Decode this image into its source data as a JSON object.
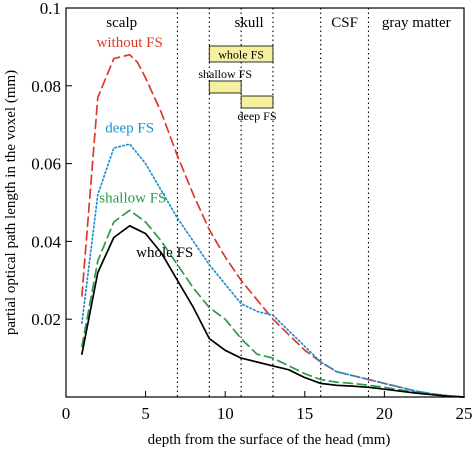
{
  "chart_data": {
    "type": "line",
    "title": "",
    "xlabel": "depth from the surface of the head  (mm)",
    "ylabel": "partial optical path length in the voxel  (mm)",
    "xlim": [
      0,
      25
    ],
    "ylim": [
      0,
      0.1
    ],
    "x_ticks": [
      "0",
      "5",
      "10",
      "15",
      "20",
      "25"
    ],
    "y_ticks": [
      "0.02",
      "0.04",
      "0.06",
      "0.08",
      "0.1"
    ],
    "grid": false,
    "regions": [
      {
        "label": "scalp",
        "from": 0,
        "to": 7
      },
      {
        "label": "skull",
        "from": 7,
        "to": 16
      },
      {
        "label": "CSF",
        "from": 16,
        "to": 19
      },
      {
        "label": "gray matter",
        "from": 19,
        "to": 25
      }
    ],
    "boundaries": [
      7,
      9,
      11,
      13,
      16,
      19
    ],
    "fs_layers": [
      {
        "label": "whole FS",
        "from": 9,
        "to": 13
      },
      {
        "label": "shallow FS",
        "from": 9,
        "to": 11
      },
      {
        "label": "deep FS",
        "from": 11,
        "to": 13
      }
    ],
    "fs_box_color": "#f5f0a0",
    "series": [
      {
        "name": "without FS",
        "color": "#d93a2b",
        "style": "dashed",
        "x": [
          1,
          2,
          3,
          4,
          4.5,
          5,
          6,
          7,
          8,
          9,
          10,
          11,
          12,
          13,
          14,
          15,
          16,
          17,
          18,
          19,
          20,
          21,
          22,
          23,
          24,
          25
        ],
        "y": [
          0.026,
          0.077,
          0.087,
          0.088,
          0.086,
          0.082,
          0.073,
          0.062,
          0.052,
          0.043,
          0.036,
          0.03,
          0.025,
          0.02,
          0.016,
          0.012,
          0.009,
          0.0065,
          0.0055,
          0.0045,
          0.0035,
          0.0025,
          0.0015,
          0.0008,
          0.0003,
          0.0
        ]
      },
      {
        "name": "deep FS",
        "color": "#1f8fd0",
        "style": "dotted",
        "x": [
          1,
          2,
          3,
          4,
          5,
          6,
          7,
          8,
          9,
          10,
          11,
          12,
          13,
          14,
          15,
          16,
          17,
          18,
          19,
          20,
          21,
          22,
          23,
          24,
          25
        ],
        "y": [
          0.019,
          0.052,
          0.064,
          0.065,
          0.06,
          0.053,
          0.046,
          0.04,
          0.034,
          0.029,
          0.024,
          0.022,
          0.021,
          0.017,
          0.013,
          0.009,
          0.0065,
          0.0055,
          0.0045,
          0.0035,
          0.0025,
          0.0015,
          0.0008,
          0.0003,
          0.0
        ]
      },
      {
        "name": "shallow FS",
        "color": "#2e9a4a",
        "style": "dashed",
        "x": [
          1,
          2,
          3,
          4,
          5,
          6,
          7,
          8,
          9,
          10,
          11,
          12,
          13,
          14,
          15,
          16,
          17,
          18,
          19,
          20,
          21,
          22,
          23,
          24,
          25
        ],
        "y": [
          0.013,
          0.035,
          0.045,
          0.048,
          0.045,
          0.04,
          0.034,
          0.028,
          0.023,
          0.02,
          0.015,
          0.011,
          0.01,
          0.008,
          0.006,
          0.0045,
          0.0038,
          0.0035,
          0.003,
          0.0025,
          0.0018,
          0.0012,
          0.0007,
          0.0003,
          0.0
        ]
      },
      {
        "name": "whole FS",
        "color": "#000000",
        "style": "solid",
        "x": [
          1,
          2,
          3,
          4,
          5,
          6,
          7,
          8,
          9,
          10,
          11,
          12,
          13,
          14,
          15,
          16,
          17,
          18,
          19,
          20,
          21,
          22,
          23,
          24,
          25
        ],
        "y": [
          0.011,
          0.032,
          0.041,
          0.044,
          0.042,
          0.037,
          0.03,
          0.023,
          0.015,
          0.012,
          0.01,
          0.009,
          0.008,
          0.007,
          0.005,
          0.0035,
          0.003,
          0.0028,
          0.0025,
          0.002,
          0.0015,
          0.001,
          0.0006,
          0.0002,
          0.0
        ]
      }
    ],
    "series_labels": [
      {
        "name": "without FS",
        "x": 4.0,
        "y": 0.089
      },
      {
        "name": "deep FS",
        "x": 4.0,
        "y": 0.067
      },
      {
        "name": "shallow FS",
        "x": 4.2,
        "y": 0.049
      },
      {
        "name": "whole FS",
        "x": 6.2,
        "y": 0.035
      }
    ]
  }
}
